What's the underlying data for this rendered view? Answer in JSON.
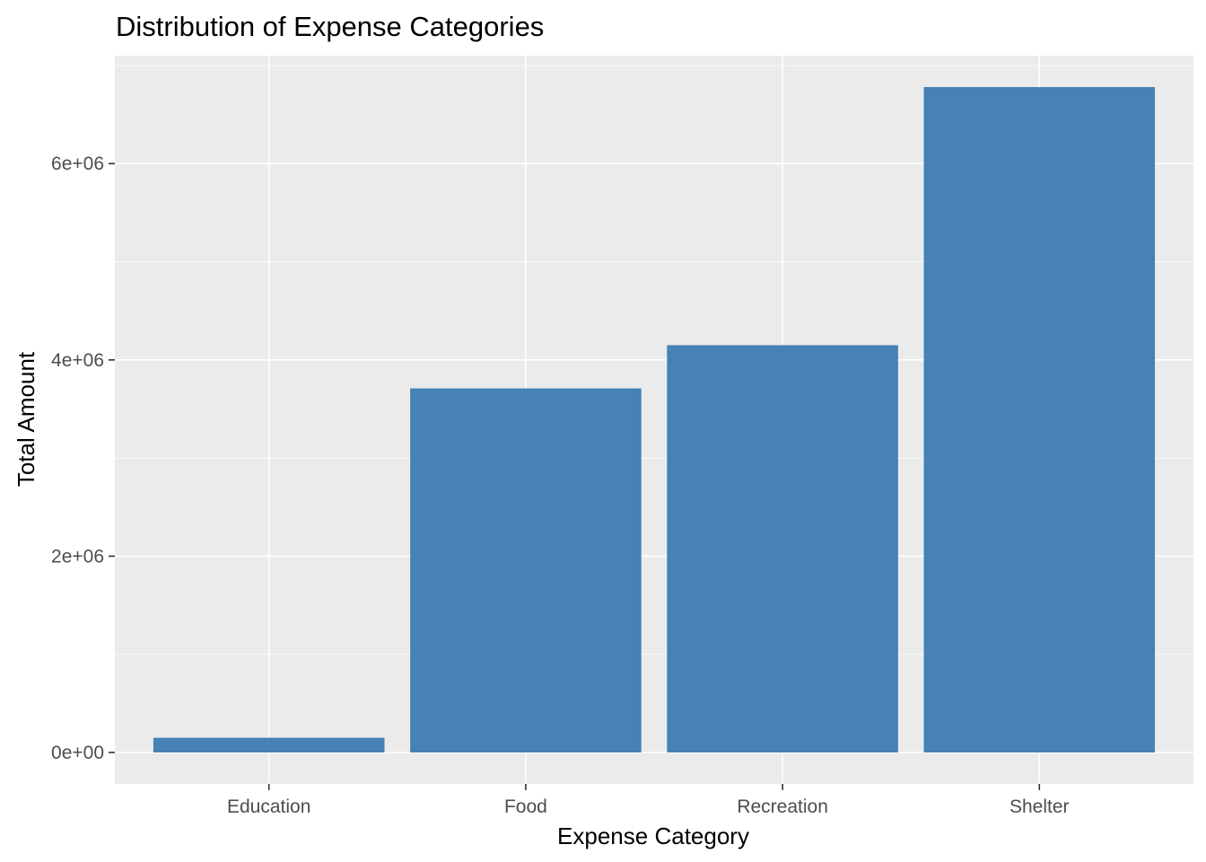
{
  "chart_data": {
    "type": "bar",
    "title": "Distribution of Expense Categories",
    "xlabel": "Expense Category",
    "ylabel": "Total Amount",
    "categories": [
      "Education",
      "Food",
      "Recreation",
      "Shelter"
    ],
    "values": [
      150000,
      3710000,
      4150000,
      6780000
    ],
    "ylim": [
      -320000,
      7100000
    ],
    "yticks": [
      0,
      2000000,
      4000000,
      6000000
    ],
    "ytick_labels": [
      "0e+00",
      "2e+06",
      "4e+06",
      "6e+06"
    ],
    "grid": true,
    "legend": "none",
    "colors": {
      "bar": "#4682B4",
      "panel": "#EBEBEB",
      "grid_major": "#FFFFFF",
      "tick_text": "#4D4D4D",
      "tick_mark": "#333333"
    }
  }
}
